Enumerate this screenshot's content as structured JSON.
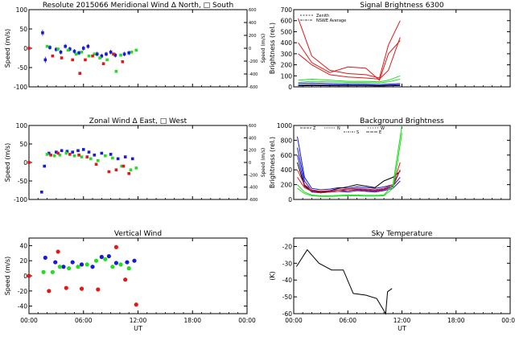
{
  "colors": {
    "red": "#e01818",
    "green": "#22dd22",
    "blue": "#1a1ad6",
    "black": "#000000"
  },
  "chart_data": [
    {
      "id": "meridional",
      "type": "scatter",
      "title": "Resolute  2015066    Meridional Wind   Δ North, □ South",
      "xlabel": "",
      "ylabel": "Speed (m/s)",
      "ylabel_right": "Speed (m/s)",
      "xlim": [
        0,
        24
      ],
      "ylim": [
        -100,
        100
      ],
      "ylim_right": [
        -600,
        600
      ],
      "xticks": [
        0,
        6,
        12,
        18,
        24
      ],
      "xticklabels": [
        "",
        "",
        "",
        "",
        ""
      ],
      "yticks": [
        -100,
        -50,
        0,
        50,
        100
      ],
      "yticklabels": [
        "-100",
        "-50",
        "0",
        "50",
        "100"
      ],
      "yticks_right": [
        -600,
        -400,
        -200,
        0,
        200,
        400,
        600
      ],
      "yticklabels_right": [
        "-600",
        "-400",
        "-200",
        "0",
        "200",
        "400",
        "600"
      ],
      "series": [
        {
          "name": "blue",
          "color": "blue",
          "err": [
            8,
            8,
            6,
            6,
            6,
            6,
            6,
            6,
            6,
            6,
            6,
            6,
            6,
            6,
            6,
            6,
            6,
            6
          ],
          "x": [
            1.5,
            1.8,
            2.3,
            3.0,
            3.5,
            4.0,
            4.5,
            5.0,
            5.5,
            6.0,
            6.5,
            7.5,
            8.0,
            8.5,
            9.0,
            9.5,
            10.5,
            11.0
          ],
          "y": [
            40,
            -30,
            2,
            -3,
            -10,
            5,
            -2,
            -8,
            -12,
            0,
            5,
            -15,
            -20,
            -15,
            -10,
            -18,
            -15,
            -12
          ]
        },
        {
          "name": "green",
          "color": "green",
          "x": [
            2.0,
            3.2,
            4.3,
            5.2,
            5.8,
            6.6,
            7.2,
            7.8,
            8.6,
            9.6,
            10.1,
            11.3,
            11.8
          ],
          "y": [
            5,
            -2,
            -5,
            -15,
            -10,
            -20,
            -15,
            -25,
            -30,
            -60,
            -18,
            -10,
            -5
          ]
        },
        {
          "name": "red",
          "color": "red",
          "x": [
            0.0,
            2.6,
            3.6,
            4.8,
            5.6,
            6.2,
            7.0,
            8.2,
            9.3,
            10.3
          ],
          "y": [
            0,
            -20,
            -25,
            -30,
            -65,
            -30,
            -20,
            -40,
            -15,
            -35
          ]
        }
      ]
    },
    {
      "id": "zonal",
      "type": "scatter",
      "title": "Zonal Wind     Δ East,  □ West",
      "xlabel": "",
      "ylabel": "Speed (m/s)",
      "ylabel_right": "Speed (m/s)",
      "xlim": [
        0,
        24
      ],
      "ylim": [
        -100,
        100
      ],
      "ylim_right": [
        -600,
        600
      ],
      "xticks": [
        0,
        6,
        12,
        18,
        24
      ],
      "xticklabels": [
        "",
        "",
        "",
        "",
        ""
      ],
      "yticks": [
        -100,
        -50,
        0,
        50,
        100
      ],
      "yticklabels": [
        "-100",
        "-50",
        "0",
        "50",
        "100"
      ],
      "yticks_right": [
        -600,
        -400,
        -200,
        0,
        200,
        400,
        600
      ],
      "yticklabels_right": [
        "-600",
        "-400",
        "-200",
        "0",
        "200",
        "400",
        "600"
      ],
      "series": [
        {
          "name": "blue",
          "color": "blue",
          "x": [
            1.4,
            1.7,
            2.2,
            3.0,
            3.6,
            4.2,
            4.8,
            5.4,
            6.0,
            6.6,
            7.2,
            8.0,
            9.0,
            9.8,
            10.6,
            11.4
          ],
          "y": [
            -80,
            -10,
            25,
            28,
            32,
            30,
            28,
            32,
            35,
            28,
            20,
            25,
            22,
            10,
            15,
            10
          ]
        },
        {
          "name": "green",
          "color": "green",
          "x": [
            2.0,
            2.8,
            3.4,
            4.1,
            5.0,
            5.8,
            6.8,
            7.6,
            8.4,
            9.2,
            10.2,
            11.2,
            11.8
          ],
          "y": [
            22,
            18,
            20,
            25,
            18,
            15,
            10,
            5,
            18,
            12,
            -10,
            -20,
            -15
          ]
        },
        {
          "name": "red",
          "color": "red",
          "x": [
            0.0,
            2.4,
            3.2,
            4.5,
            5.5,
            6.4,
            7.4,
            8.8,
            9.6,
            10.4,
            11.0
          ],
          "y": [
            0,
            20,
            25,
            22,
            20,
            15,
            -5,
            -25,
            -20,
            -10,
            -30
          ]
        }
      ]
    },
    {
      "id": "vertical",
      "type": "scatter",
      "title": "Vertical Wind",
      "xlabel": "UT",
      "ylabel": "Speed (m/s)",
      "xlim": [
        0,
        24
      ],
      "ylim": [
        -50,
        50
      ],
      "xticks": [
        0,
        6,
        12,
        18,
        24
      ],
      "xticklabels": [
        "00:00",
        "06:00",
        "12:00",
        "18:00",
        "00:00"
      ],
      "yticks": [
        -40,
        -20,
        0,
        20,
        40
      ],
      "yticklabels": [
        "-40",
        "-20",
        "0",
        "20",
        "40"
      ],
      "series": [
        {
          "name": "blue",
          "color": "blue",
          "x": [
            1.8,
            2.9,
            3.8,
            4.8,
            5.8,
            7.0,
            8.0,
            8.8,
            9.6,
            10.8,
            11.6
          ],
          "y": [
            24,
            18,
            12,
            18,
            15,
            12,
            25,
            26,
            17,
            18,
            20
          ]
        },
        {
          "name": "green",
          "color": "green",
          "x": [
            1.6,
            2.6,
            3.4,
            4.4,
            5.4,
            6.4,
            7.4,
            8.4,
            9.2,
            10.1,
            11.0
          ],
          "y": [
            5,
            5,
            12,
            10,
            12,
            15,
            20,
            22,
            12,
            15,
            10
          ]
        },
        {
          "name": "red",
          "color": "red",
          "x": [
            0.0,
            2.2,
            3.2,
            4.1,
            5.8,
            7.6,
            9.6,
            10.6,
            11.8
          ],
          "y": [
            0,
            -20,
            32,
            -16,
            -17,
            -18,
            38,
            -5,
            -38
          ]
        }
      ]
    },
    {
      "id": "signal",
      "type": "line",
      "title": "Signal Brightness          6300",
      "xlabel": "",
      "ylabel": "Brightness (rel.)",
      "xlim": [
        0,
        24
      ],
      "ylim": [
        0,
        700
      ],
      "xticks": [
        0,
        6,
        12,
        18,
        24
      ],
      "xticklabels": [
        "",
        "",
        "",
        "",
        ""
      ],
      "yticks": [
        0,
        100,
        200,
        300,
        400,
        500,
        600,
        700
      ],
      "yticklabels": [
        "0",
        "100",
        "200",
        "300",
        "400",
        "500",
        "600",
        "700"
      ],
      "legend": [
        "Zenith",
        "NSWE Average"
      ],
      "series": [
        {
          "name": "red-1",
          "color": "red",
          "x": [
            0.5,
            2,
            4,
            6,
            8,
            9.5,
            10.5,
            11.8
          ],
          "y": [
            620,
            280,
            150,
            120,
            110,
            80,
            380,
            600
          ]
        },
        {
          "name": "red-2",
          "color": "red",
          "x": [
            0.5,
            2,
            4,
            6,
            8,
            9.5,
            10.5,
            11.8
          ],
          "y": [
            400,
            220,
            130,
            180,
            170,
            60,
            300,
            420
          ]
        },
        {
          "name": "red-3",
          "color": "red",
          "x": [
            0.5,
            2,
            4,
            6,
            8,
            9.5,
            10.5,
            11.8
          ],
          "y": [
            300,
            200,
            110,
            90,
            80,
            70,
            150,
            450
          ]
        },
        {
          "name": "green-1",
          "color": "green",
          "x": [
            0.5,
            2,
            4,
            6,
            8,
            9.5,
            10.5,
            11.8
          ],
          "y": [
            60,
            70,
            60,
            50,
            50,
            45,
            60,
            100
          ]
        },
        {
          "name": "green-2",
          "color": "green",
          "x": [
            0.5,
            2,
            4,
            6,
            8,
            9.5,
            10.5,
            11.8
          ],
          "y": [
            40,
            50,
            45,
            40,
            40,
            35,
            45,
            70
          ]
        },
        {
          "name": "blue-1",
          "color": "blue",
          "x": [
            0.5,
            2,
            4,
            6,
            8,
            9.5,
            10.5,
            11.8
          ],
          "y": [
            30,
            35,
            30,
            25,
            25,
            20,
            25,
            30
          ]
        },
        {
          "name": "blue-2",
          "color": "blue",
          "x": [
            0.5,
            2,
            4,
            6,
            8,
            9.5,
            10.5,
            11.8
          ],
          "y": [
            15,
            20,
            18,
            15,
            15,
            12,
            15,
            20
          ]
        },
        {
          "name": "black-1",
          "color": "black",
          "x": [
            0.5,
            2,
            4,
            6,
            8,
            9.5,
            10.5,
            11.8
          ],
          "y": [
            10,
            12,
            10,
            10,
            10,
            8,
            10,
            12
          ]
        }
      ]
    },
    {
      "id": "background",
      "type": "line",
      "title": "Background Brightness",
      "xlabel": "",
      "ylabel": "Brightness (rel.)",
      "xlim": [
        0,
        24
      ],
      "ylim": [
        0,
        1000
      ],
      "xticks": [
        0,
        6,
        12,
        18,
        24
      ],
      "xticklabels": [
        "",
        "",
        "",
        "",
        ""
      ],
      "yticks": [
        0,
        200,
        400,
        600,
        800,
        1000
      ],
      "yticklabels": [
        "0",
        "200",
        "400",
        "600",
        "800",
        "1000"
      ],
      "legend": [
        "Z",
        "N",
        "S",
        "W",
        "E"
      ],
      "series": [
        {
          "name": "blue-1",
          "color": "blue",
          "x": [
            0.4,
            1.2,
            2,
            3,
            4,
            5,
            6,
            7,
            8,
            9,
            10,
            11,
            11.8
          ],
          "y": [
            850,
            300,
            150,
            130,
            140,
            160,
            150,
            170,
            160,
            150,
            170,
            200,
            400
          ]
        },
        {
          "name": "blue-2",
          "color": "blue",
          "x": [
            0.4,
            1.2,
            2,
            3,
            4,
            5,
            6,
            7,
            8,
            9,
            10,
            11,
            11.8
          ],
          "y": [
            700,
            250,
            120,
            100,
            110,
            130,
            120,
            140,
            130,
            120,
            140,
            180,
            300
          ]
        },
        {
          "name": "blue-3",
          "color": "blue",
          "x": [
            0.4,
            1.2,
            2,
            3,
            4,
            5,
            6,
            7,
            8,
            9,
            10,
            11,
            11.8
          ],
          "y": [
            600,
            200,
            100,
            90,
            100,
            110,
            100,
            120,
            110,
            100,
            120,
            150,
            250
          ]
        },
        {
          "name": "black-1",
          "color": "black",
          "x": [
            0.4,
            1.2,
            2,
            3,
            4,
            5,
            6,
            7,
            8,
            9,
            10,
            11,
            11.8
          ],
          "y": [
            500,
            180,
            110,
            100,
            120,
            150,
            170,
            200,
            180,
            160,
            250,
            300,
            380
          ]
        },
        {
          "name": "red-1",
          "color": "red",
          "x": [
            0.4,
            1.2,
            2,
            3,
            4,
            5,
            6,
            7,
            8,
            9,
            10,
            11,
            11.8
          ],
          "y": [
            400,
            200,
            130,
            110,
            120,
            130,
            140,
            150,
            140,
            130,
            150,
            200,
            500
          ]
        },
        {
          "name": "red-2",
          "color": "red",
          "x": [
            0.4,
            1.2,
            2,
            3,
            4,
            5,
            6,
            7,
            8,
            9,
            10,
            11,
            11.8
          ],
          "y": [
            300,
            160,
            110,
            90,
            100,
            110,
            120,
            130,
            120,
            110,
            130,
            170,
            400
          ]
        },
        {
          "name": "green-1",
          "color": "green",
          "x": [
            0.4,
            1.2,
            2,
            3,
            4,
            5,
            6,
            7,
            8,
            9,
            10,
            11,
            11.5,
            12
          ],
          "y": [
            200,
            100,
            60,
            50,
            50,
            55,
            60,
            60,
            55,
            55,
            60,
            200,
            600,
            1000
          ]
        },
        {
          "name": "green-2",
          "color": "green",
          "x": [
            0.4,
            1.2,
            2,
            3,
            4,
            5,
            6,
            7,
            8,
            9,
            10,
            11,
            11.5,
            12
          ],
          "y": [
            150,
            80,
            50,
            40,
            40,
            45,
            50,
            50,
            45,
            45,
            50,
            150,
            500,
            900
          ]
        }
      ]
    },
    {
      "id": "skytemp",
      "type": "line",
      "title": "Sky Temperature",
      "xlabel": "UT",
      "ylabel": "(K)",
      "xlim": [
        0,
        24
      ],
      "ylim": [
        -60,
        -15
      ],
      "xticks": [
        0,
        6,
        12,
        18,
        24
      ],
      "xticklabels": [
        "00:00",
        "06:00",
        "12:00",
        "18:00",
        "00:00"
      ],
      "yticks": [
        -60,
        -50,
        -40,
        -30,
        -20
      ],
      "yticklabels": [
        "-60",
        "-50",
        "-40",
        "-30",
        "-20"
      ],
      "series": [
        {
          "name": "black",
          "color": "black",
          "x": [
            0.3,
            1.5,
            2.8,
            4.2,
            5.5,
            6.6,
            8.0,
            9.2,
            10.2,
            10.4,
            10.9
          ],
          "y": [
            -32,
            -22,
            -30,
            -34,
            -34,
            -48,
            -49,
            -51,
            -60,
            -47,
            -45
          ]
        }
      ]
    }
  ]
}
